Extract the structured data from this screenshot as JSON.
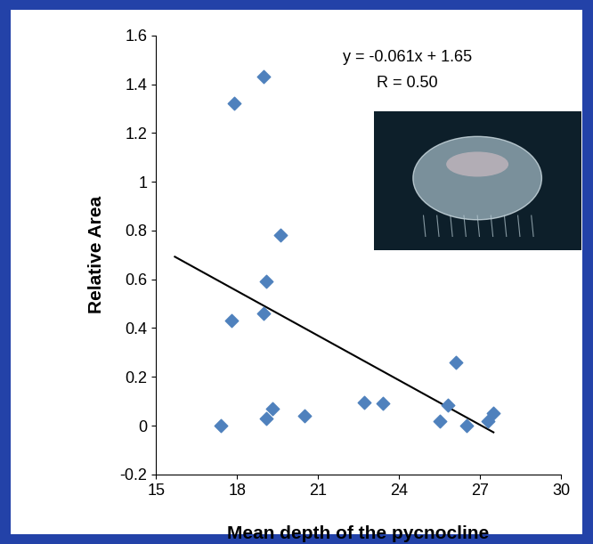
{
  "chart_data": {
    "type": "scatter",
    "x_label": "Mean depth of the pycnocline",
    "y_label": "Relative Area",
    "annotations": [
      "y = -0.061x + 1.65",
      "R = 0.50"
    ],
    "x": [
      17.4,
      17.8,
      17.9,
      19.0,
      19.0,
      19.1,
      19.1,
      19.3,
      19.6,
      20.5,
      22.7,
      23.4,
      25.5,
      25.8,
      26.1,
      26.5,
      27.3,
      27.5
    ],
    "values": [
      0.0,
      0.43,
      1.32,
      1.43,
      0.46,
      0.59,
      0.03,
      0.07,
      0.78,
      0.04,
      0.095,
      0.09,
      0.02,
      0.085,
      0.26,
      0.0,
      0.02,
      0.05
    ],
    "color": "#4f81bd",
    "marker": "diamond",
    "trendline": {
      "slope": -0.061,
      "intercept": 1.65,
      "x_range": [
        15.7,
        27.5
      ],
      "color": "#000000"
    },
    "xlim": [
      15,
      30
    ],
    "xticks": [
      15,
      18,
      21,
      24,
      27,
      30
    ],
    "ylim": [
      -0.2,
      1.6
    ],
    "yticks": [
      -0.2,
      0,
      0.2,
      0.4,
      0.6,
      0.8,
      1,
      1.2,
      1.4,
      1.6
    ],
    "grid": false
  }
}
